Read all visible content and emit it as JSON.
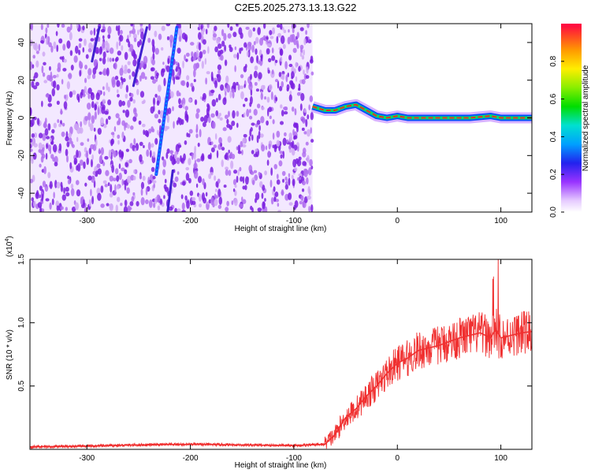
{
  "title": "C2E5.2025.273.13.13.G22",
  "colors": {
    "snr_line": "#f03030",
    "scatter": "#7a1fe0",
    "scatter_light": "#cfa8f5",
    "axis": "#000000"
  },
  "chart_data": [
    {
      "type": "heatmap",
      "name": "spectrogram",
      "title": "C2E5.2025.273.13.13.G22",
      "xlabel": "Height of straight line (km)",
      "ylabel": "Frequency (Hz)",
      "xlim": [
        -355,
        130
      ],
      "ylim": [
        -50,
        50
      ],
      "x_ticks": [
        -300,
        -200,
        -100,
        0,
        100
      ],
      "y_ticks": [
        -40,
        -20,
        0,
        20,
        40
      ],
      "colorbar": {
        "label": "Normalized spectral amplitude",
        "range": [
          0,
          1
        ],
        "ticks": [
          "0.0",
          "0.2",
          "0.4",
          "0.6",
          "0.8"
        ],
        "tick_values": [
          0.0,
          0.2,
          0.4,
          0.6,
          0.8
        ]
      },
      "noise_region": [
        -355,
        -82
      ],
      "diagonal_streaks": [
        {
          "x": [
            -233,
            -213
          ],
          "y": [
            -30,
            48
          ]
        },
        {
          "x": [
            -222,
            -217
          ],
          "y": [
            -50,
            -28
          ]
        },
        {
          "x": [
            -255,
            -242
          ],
          "y": [
            17,
            48
          ]
        },
        {
          "x": [
            -295,
            -288
          ],
          "y": [
            30,
            48
          ]
        }
      ],
      "signal_track": {
        "x": [
          -82,
          -70,
          -60,
          -50,
          -40,
          -30,
          -20,
          -10,
          0,
          10,
          40,
          70,
          90,
          100,
          130
        ],
        "y": [
          6,
          4,
          4,
          6,
          7,
          4,
          1,
          0,
          1,
          0,
          0,
          0,
          1,
          0,
          0
        ]
      }
    },
    {
      "type": "line",
      "name": "snr",
      "xlabel": "Height of straight line (km)",
      "ylabel": "SNR (10 * v/v)",
      "scale_label": "(x10^4)",
      "xlim": [
        -355,
        130
      ],
      "ylim": [
        0,
        1.5
      ],
      "x_ticks": [
        -300,
        -200,
        -100,
        0,
        100
      ],
      "y_ticks": [
        0.5,
        1.0,
        1.5
      ],
      "y_tick_labels": [
        "0.5",
        "1.0",
        "1.5"
      ],
      "series": [
        {
          "x": [
            -355,
            -300,
            -250,
            -200,
            -150,
            -100,
            -70,
            -60,
            -50,
            -40,
            -30,
            -20,
            -10,
            0,
            10,
            20,
            30,
            40,
            50,
            60,
            70,
            80,
            90,
            95,
            100,
            110,
            120,
            130
          ],
          "y": [
            0.02,
            0.025,
            0.035,
            0.04,
            0.035,
            0.03,
            0.04,
            0.12,
            0.25,
            0.32,
            0.42,
            0.5,
            0.6,
            0.68,
            0.72,
            0.78,
            0.8,
            0.82,
            0.85,
            0.88,
            0.9,
            0.92,
            0.88,
            0.95,
            0.88,
            0.9,
            0.92,
            0.93
          ]
        }
      ]
    }
  ]
}
